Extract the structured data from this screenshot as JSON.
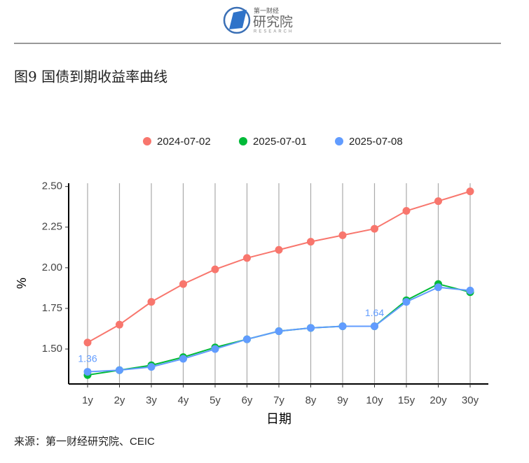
{
  "header": {
    "brand_small": "第一财经",
    "brand": "研究院",
    "brand_en": "RESEARCH"
  },
  "chart_data": {
    "type": "line",
    "title": "图9 国债到期收益率曲线",
    "x_label": "日期",
    "y_label": "%",
    "categories": [
      "1y",
      "2y",
      "3y",
      "4y",
      "5y",
      "6y",
      "7y",
      "8y",
      "9y",
      "10y",
      "15y",
      "20y",
      "30y"
    ],
    "series": [
      {
        "name": "2024-07-02",
        "color": "#F8766D",
        "values": [
          1.54,
          1.65,
          1.79,
          1.9,
          1.99,
          2.06,
          2.11,
          2.16,
          2.2,
          2.24,
          2.35,
          2.41,
          2.47
        ]
      },
      {
        "name": "2025-07-01",
        "color": "#00BA38",
        "values": [
          1.34,
          1.37,
          1.4,
          1.45,
          1.51,
          1.56,
          1.61,
          1.63,
          1.64,
          1.64,
          1.8,
          1.9,
          1.85
        ]
      },
      {
        "name": "2025-07-08",
        "color": "#619CFF",
        "values": [
          1.36,
          1.37,
          1.39,
          1.44,
          1.5,
          1.56,
          1.61,
          1.63,
          1.64,
          1.64,
          1.79,
          1.88,
          1.86
        ],
        "value_labels": [
          "1.36",
          null,
          null,
          null,
          null,
          null,
          null,
          null,
          null,
          "1.64",
          null,
          null,
          null
        ]
      }
    ],
    "ylim": [
      1.285,
      2.52
    ],
    "yticks": [
      {
        "value": 1.5,
        "label": "1.50"
      },
      {
        "value": 1.75,
        "label": "1.75"
      },
      {
        "value": 2.0,
        "label": "2.00"
      },
      {
        "value": 2.25,
        "label": "2.25"
      },
      {
        "value": 2.5,
        "label": "2.50"
      }
    ],
    "grid": "vertical",
    "legend": "top"
  },
  "source": "来源：第一财经研究院、CEIC"
}
